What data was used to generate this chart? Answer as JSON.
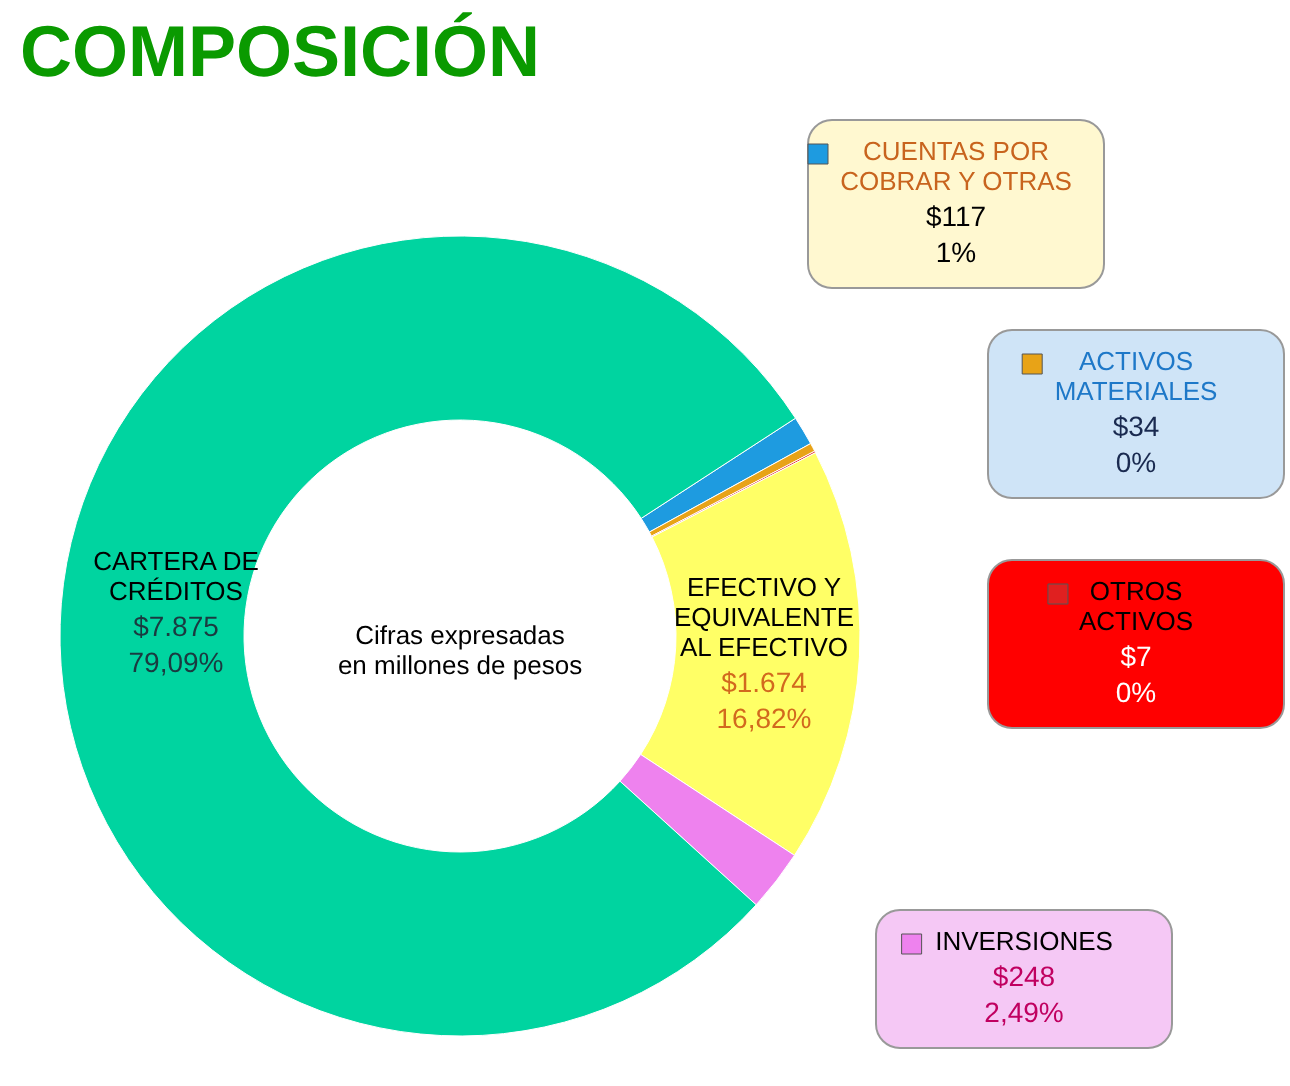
{
  "chart_data": {
    "type": "donut",
    "title": "COMPOSICIÓN",
    "categories": [
      "CUENTAS POR COBRAR Y OTRAS",
      "ACTIVOS MATERIALES",
      "OTROS ACTIVOS",
      "EFECTIVO Y EQUIVALENTE AL EFECTIVO",
      "INVERSIONES",
      "CARTERA DE CRÉDITOS"
    ],
    "values": [
      117,
      34,
      7,
      1674,
      248,
      7875
    ],
    "colors": [
      "#1e9be0",
      "#e8a317",
      "#e02020",
      "#ffff66",
      "#ee82ee",
      "#00d4a0"
    ],
    "value_labels": [
      "$117\n1%",
      "$34\n0%",
      "$7\n0%",
      "$1.674\n16,82%",
      "$248\n2,49%",
      "$7.875\n79,09%"
    ],
    "annotations": [
      "Cifras expresadas\nen millones de pesos"
    ],
    "legend": "right"
  }
}
